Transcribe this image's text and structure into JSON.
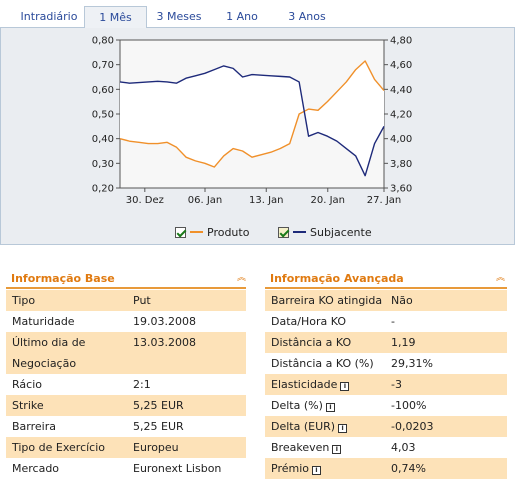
{
  "tabs": [
    {
      "label": "Intradiário",
      "active": false
    },
    {
      "label": "1 Mês",
      "active": true
    },
    {
      "label": "3 Meses",
      "active": false
    },
    {
      "label": "1 Ano",
      "active": false
    },
    {
      "label": "3 Anos",
      "active": false
    }
  ],
  "chart_data": {
    "type": "line",
    "y_left": {
      "min": 0.2,
      "max": 0.8,
      "ticks": [
        "0,80",
        "0,70",
        "0,60",
        "0,50",
        "0,40",
        "0,30",
        "0,20"
      ]
    },
    "y_right": {
      "min": 3.6,
      "max": 4.8,
      "ticks": [
        "4,80",
        "4,60",
        "4,40",
        "4,20",
        "4,00",
        "3,80",
        "3,60"
      ]
    },
    "x_ticks": [
      "30. Dez",
      "06. Jan",
      "13. Jan",
      "20. Jan",
      "27. Jan"
    ],
    "series": [
      {
        "name": "Produto",
        "color": "#f0902a",
        "axis": "left",
        "values": [
          0.4,
          0.39,
          0.385,
          0.38,
          0.38,
          0.385,
          0.365,
          0.325,
          0.31,
          0.3,
          0.285,
          0.33,
          0.36,
          0.35,
          0.325,
          0.335,
          0.345,
          0.36,
          0.38,
          0.5,
          0.52,
          0.515,
          0.55,
          0.59,
          0.63,
          0.68,
          0.715,
          0.64,
          0.595
        ]
      },
      {
        "name": "Subjacente",
        "color": "#1e2a7a",
        "axis": "right",
        "values": [
          4.46,
          4.45,
          4.455,
          4.46,
          4.465,
          4.46,
          4.45,
          4.49,
          4.51,
          4.53,
          4.56,
          4.59,
          4.57,
          4.5,
          4.52,
          4.515,
          4.51,
          4.505,
          4.5,
          4.46,
          4.02,
          4.05,
          4.02,
          3.98,
          3.92,
          3.86,
          3.7,
          3.96,
          4.1
        ]
      }
    ],
    "legend": [
      "Produto",
      "Subjacente"
    ],
    "grid": false,
    "legend_position": "bottom"
  },
  "info_base": {
    "title": "Informação Base",
    "rows": [
      {
        "label": "Tipo",
        "value": "Put"
      },
      {
        "label": "Maturidade",
        "value": "19.03.2008"
      },
      {
        "label": "Último dia de",
        "label2": "Negociação",
        "value": "13.03.2008"
      },
      {
        "label": "Rácio",
        "value": "2:1"
      },
      {
        "label": "Strike",
        "value": "5,25 EUR"
      },
      {
        "label": "Barreira",
        "value": "5,25 EUR"
      },
      {
        "label": "Tipo de Exercício",
        "value": "Europeu"
      },
      {
        "label": "Mercado",
        "value": "Euronext Lisbon"
      }
    ]
  },
  "info_avancada": {
    "title": "Informação Avançada",
    "rows": [
      {
        "label": "Barreira KO atingida",
        "value": "Não",
        "info": false
      },
      {
        "label": "Data/Hora KO",
        "value": "-",
        "info": false
      },
      {
        "label": "Distância a KO",
        "value": "1,19",
        "info": false
      },
      {
        "label": "Distância a KO (%)",
        "value": "29,31%",
        "info": false
      },
      {
        "label": "Elasticidade",
        "value": "-3",
        "info": true
      },
      {
        "label": "Delta (%)",
        "value": "-100%",
        "info": true
      },
      {
        "label": "Delta (EUR)",
        "value": "-0,0203",
        "info": true
      },
      {
        "label": "Breakeven",
        "value": "4,03",
        "info": true
      },
      {
        "label": "Prémio",
        "value": "0,74%",
        "info": true
      }
    ]
  }
}
